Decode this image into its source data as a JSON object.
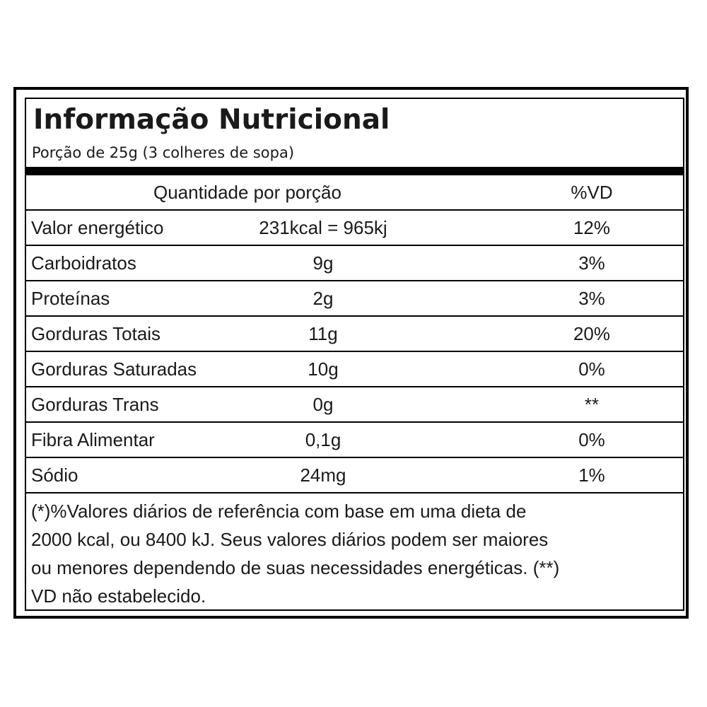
{
  "label": {
    "title": "Informação Nutricional",
    "serving": "Porção de 25g (3 colheres de sopa)",
    "header": {
      "quantity": "Quantidade por porção",
      "vd": "%VD"
    },
    "rows": [
      {
        "name": "Valor energético",
        "amount": "231kcal = 965kj",
        "vd": "12%"
      },
      {
        "name": "Carboidratos",
        "amount": "9g",
        "vd": "3%"
      },
      {
        "name": "Proteínas",
        "amount": "2g",
        "vd": "3%"
      },
      {
        "name": "Gorduras Totais",
        "amount": "11g",
        "vd": "20%"
      },
      {
        "name": "Gorduras Saturadas",
        "amount": "10g",
        "vd": "0%"
      },
      {
        "name": "Gorduras Trans",
        "amount": "0g",
        "vd": "**"
      },
      {
        "name": "Fibra Alimentar",
        "amount": "0,1g",
        "vd": "0%"
      },
      {
        "name": "Sódio",
        "amount": "24mg",
        "vd": "1%"
      }
    ],
    "footnote_lines": [
      "(*)%Valores diários de referência com base em uma dieta de",
      "2000 kcal, ou 8400 kJ. Seus valores diários podem ser maiores",
      "ou menores dependendo de suas necessidades energéticas. (**)",
      "VD não estabelecido."
    ]
  }
}
